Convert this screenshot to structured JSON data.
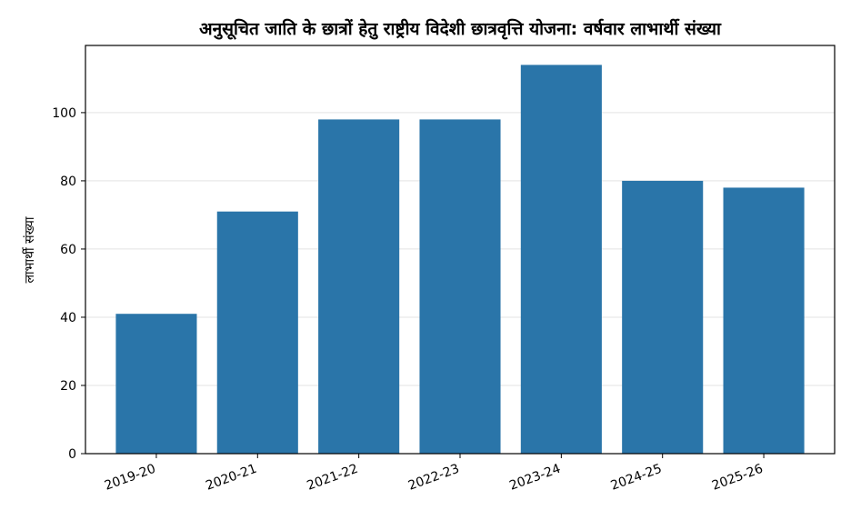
{
  "colors": {
    "bar": "#2a75a9",
    "grid": "#e3e3e3",
    "axis": "#000000",
    "background": "#ffffff"
  },
  "chart_data": {
    "type": "bar",
    "title": "अनुसूचित जाति के छात्रों हेतु राष्ट्रीय विदेशी छात्रवृत्ति योजना: वर्षवार लाभार्थी संख्या",
    "xlabel": "",
    "ylabel": "लाभार्थी संख्या",
    "categories": [
      "2019-20",
      "2020-21",
      "2021-22",
      "2022-23",
      "2023-24",
      "2024-25",
      "2025-26"
    ],
    "values": [
      41,
      71,
      98,
      98,
      114,
      80,
      78
    ],
    "ylim": [
      0,
      119.7
    ],
    "yticks": [
      0,
      20,
      40,
      60,
      80,
      100
    ],
    "grid": "horizontal",
    "legend": "none"
  }
}
